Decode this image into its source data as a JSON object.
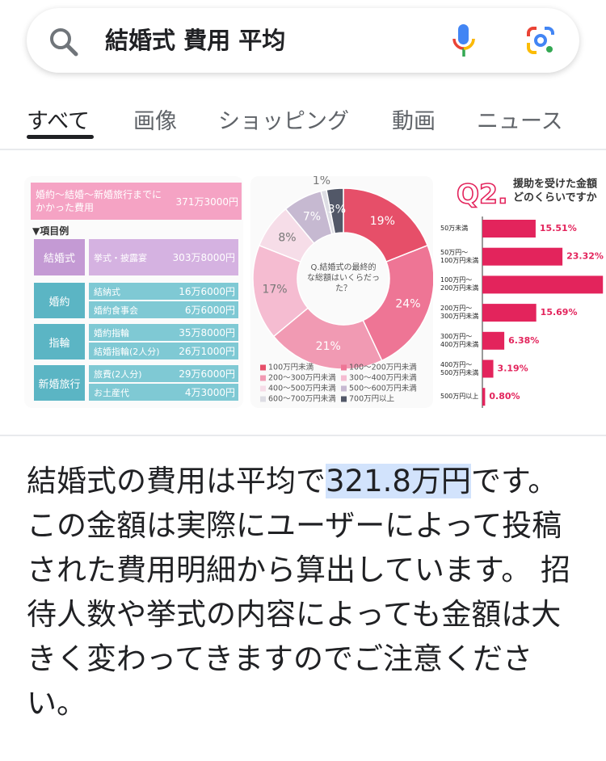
{
  "search": {
    "query": "結婚式 費用 平均"
  },
  "tabs": [
    "すべて",
    "画像",
    "ショッピング",
    "動画",
    "ニュース"
  ],
  "table_image": {
    "header": {
      "label": "婚約～結婚～新婚旅行までにかかった費用",
      "amount": "371万3000円"
    },
    "section": "▼項目例",
    "groups": [
      {
        "name": "結婚式",
        "items": [
          {
            "name": "挙式・披露宴",
            "amount": "303万8000円"
          }
        ]
      },
      {
        "name": "婚約",
        "items": [
          {
            "name": "結納式",
            "amount": "16万6000円"
          },
          {
            "name": "婚約食事会",
            "amount": "6万6000円"
          }
        ]
      },
      {
        "name": "指輪",
        "items": [
          {
            "name": "婚約指輪",
            "amount": "35万8000円"
          },
          {
            "name": "結婚指輪(2人分)",
            "amount": "26万1000円"
          }
        ]
      },
      {
        "name": "新婚旅行",
        "items": [
          {
            "name": "旅費(2人分)",
            "amount": "29万6000円"
          },
          {
            "name": "お土産代",
            "amount": "4万3000円"
          }
        ]
      }
    ]
  },
  "chart_data": [
    {
      "type": "pie",
      "title": "Q.結婚式の最終的な総額はいくらだった？",
      "categories": [
        "100万円未満",
        "100～200万円未満",
        "200～300万円未満",
        "300～400万円未満",
        "400～500万円未満",
        "500～600万円未満",
        "600～700万円未満",
        "700万円以上"
      ],
      "values": [
        19,
        24,
        21,
        17,
        8,
        7,
        1,
        3
      ],
      "value_labels": [
        "19%",
        "24%",
        "21%",
        "17%",
        "8%",
        "7%",
        "1%",
        "3%"
      ],
      "colors": [
        "#e64f69",
        "#ee7595",
        "#f19ab3",
        "#f5bcd1",
        "#f6dde8",
        "#c6b9d1",
        "#dddde4",
        "#525868"
      ]
    },
    {
      "type": "bar",
      "orientation": "horizontal",
      "title_prefix": "Q2.",
      "title": [
        "援助を受けた金額",
        "どのくらいですか"
      ],
      "categories": [
        "50万未満",
        "50万円～100万円未満",
        "100万円～200万円未満",
        "200万円～300万円未満",
        "300万円～400万円未満",
        "400万円～500万円未満",
        "500万円以上"
      ],
      "values": [
        15.51,
        23.32,
        35.11,
        15.69,
        6.38,
        3.19,
        0.8
      ],
      "value_labels": [
        "15.51%",
        "23.32%",
        null,
        "15.69%",
        "6.38%",
        "3.19%",
        "0.80%"
      ],
      "color": "#e3245c",
      "xlim": [
        0,
        36
      ]
    }
  ],
  "answer": {
    "before": "結婚式の費用は平均で",
    "highlight": "321.8万円",
    "after": "です。 この金額は実際にユーザーによって投稿された費用明細から算出しています。 招待人数や挙式の内容によっても金額は大きく変わってきますのでご注意ください。"
  }
}
